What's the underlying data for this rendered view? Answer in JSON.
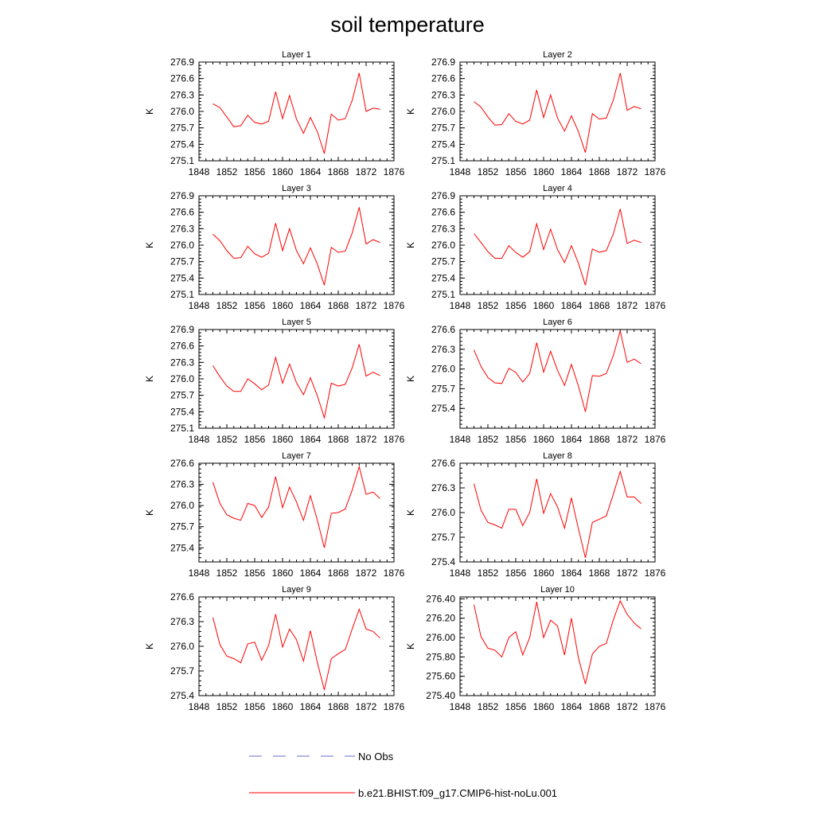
{
  "title": "soil temperature",
  "legend": {
    "entries": [
      {
        "label": "No Obs",
        "color": "#6a6ad0",
        "style": "dashed"
      },
      {
        "label": "b.e21.BHIST.f09_g17.CMIP6-hist-noLu.001",
        "color": "#ff0000",
        "style": "solid"
      }
    ]
  },
  "chart_data": [
    {
      "type": "line",
      "title": "Layer 1",
      "ylabel": "K",
      "xlim": [
        1848,
        1876
      ],
      "ylim": [
        275.1,
        276.9
      ],
      "xticks": [
        "1848",
        "1852",
        "1856",
        "1860",
        "1864",
        "1868",
        "1872",
        "1876"
      ],
      "yticks": [
        "275.1",
        "275.4",
        "275.7",
        "276.0",
        "276.3",
        "276.6",
        "276.9"
      ],
      "x": [
        1850,
        1851,
        1852,
        1853,
        1854,
        1855,
        1856,
        1857,
        1858,
        1859,
        1860,
        1861,
        1862,
        1863,
        1864,
        1865,
        1866,
        1867,
        1868,
        1869,
        1870,
        1871,
        1872,
        1873,
        1874
      ],
      "series": [
        {
          "color": "#ff0000",
          "values": [
            276.14,
            276.07,
            275.9,
            275.72,
            275.74,
            275.93,
            275.8,
            275.77,
            275.82,
            276.36,
            275.87,
            276.29,
            275.86,
            275.6,
            275.89,
            275.63,
            275.23,
            275.95,
            275.84,
            275.87,
            276.2,
            276.7,
            276.0,
            276.06,
            276.04
          ]
        }
      ]
    },
    {
      "type": "line",
      "title": "Layer 2",
      "ylabel": "K",
      "xlim": [
        1848,
        1876
      ],
      "ylim": [
        275.1,
        276.9
      ],
      "xticks": [
        "1848",
        "1852",
        "1856",
        "1860",
        "1864",
        "1868",
        "1872",
        "1876"
      ],
      "yticks": [
        "275.1",
        "275.4",
        "275.7",
        "276.0",
        "276.3",
        "276.6",
        "276.9"
      ],
      "x": [
        1850,
        1851,
        1852,
        1853,
        1854,
        1855,
        1856,
        1857,
        1858,
        1859,
        1860,
        1861,
        1862,
        1863,
        1864,
        1865,
        1866,
        1867,
        1868,
        1869,
        1870,
        1871,
        1872,
        1873,
        1874
      ],
      "series": [
        {
          "color": "#ff0000",
          "values": [
            276.18,
            276.08,
            275.9,
            275.75,
            275.76,
            275.96,
            275.82,
            275.77,
            275.84,
            276.39,
            275.89,
            276.3,
            275.88,
            275.64,
            275.92,
            275.63,
            275.25,
            275.96,
            275.86,
            275.88,
            276.2,
            276.7,
            276.02,
            276.09,
            276.05
          ]
        }
      ]
    },
    {
      "type": "line",
      "title": "Layer 3",
      "ylabel": "K",
      "xlim": [
        1848,
        1876
      ],
      "ylim": [
        275.1,
        276.9
      ],
      "xticks": [
        "1848",
        "1852",
        "1856",
        "1860",
        "1864",
        "1868",
        "1872",
        "1876"
      ],
      "yticks": [
        "275.1",
        "275.4",
        "275.7",
        "276.0",
        "276.3",
        "276.6",
        "276.9"
      ],
      "x": [
        1850,
        1851,
        1852,
        1853,
        1854,
        1855,
        1856,
        1857,
        1858,
        1859,
        1860,
        1861,
        1862,
        1863,
        1864,
        1865,
        1866,
        1867,
        1868,
        1869,
        1870,
        1871,
        1872,
        1873,
        1874
      ],
      "series": [
        {
          "color": "#ff0000",
          "values": [
            276.2,
            276.08,
            275.9,
            275.76,
            275.77,
            275.98,
            275.84,
            275.78,
            275.85,
            276.4,
            275.9,
            276.3,
            275.9,
            275.66,
            275.95,
            275.65,
            275.27,
            275.96,
            275.87,
            275.89,
            276.22,
            276.69,
            276.02,
            276.1,
            276.05
          ]
        }
      ]
    },
    {
      "type": "line",
      "title": "Layer 4",
      "ylabel": "K",
      "xlim": [
        1848,
        1876
      ],
      "ylim": [
        275.1,
        276.9
      ],
      "xticks": [
        "1848",
        "1852",
        "1856",
        "1860",
        "1864",
        "1868",
        "1872",
        "1876"
      ],
      "yticks": [
        "275.1",
        "275.4",
        "275.7",
        "276.0",
        "276.3",
        "276.6",
        "276.9"
      ],
      "x": [
        1850,
        1851,
        1852,
        1853,
        1854,
        1855,
        1856,
        1857,
        1858,
        1859,
        1860,
        1861,
        1862,
        1863,
        1864,
        1865,
        1866,
        1867,
        1868,
        1869,
        1870,
        1871,
        1872,
        1873,
        1874
      ],
      "series": [
        {
          "color": "#ff0000",
          "values": [
            276.21,
            276.05,
            275.88,
            275.76,
            275.76,
            275.99,
            275.87,
            275.78,
            275.88,
            276.39,
            275.92,
            276.29,
            275.92,
            275.68,
            275.99,
            275.67,
            275.27,
            275.93,
            275.87,
            275.9,
            276.2,
            276.66,
            276.03,
            276.09,
            276.05
          ]
        }
      ]
    },
    {
      "type": "line",
      "title": "Layer 5",
      "ylabel": "K",
      "xlim": [
        1848,
        1876
      ],
      "ylim": [
        275.1,
        276.9
      ],
      "xticks": [
        "1848",
        "1852",
        "1856",
        "1860",
        "1864",
        "1868",
        "1872",
        "1876"
      ],
      "yticks": [
        "275.1",
        "275.4",
        "275.7",
        "276.0",
        "276.3",
        "276.6",
        "276.9"
      ],
      "x": [
        1850,
        1851,
        1852,
        1853,
        1854,
        1855,
        1856,
        1857,
        1858,
        1859,
        1860,
        1861,
        1862,
        1863,
        1864,
        1865,
        1866,
        1867,
        1868,
        1869,
        1870,
        1871,
        1872,
        1873,
        1874
      ],
      "series": [
        {
          "color": "#ff0000",
          "values": [
            276.24,
            276.04,
            275.87,
            275.77,
            275.77,
            276.0,
            275.91,
            275.8,
            275.89,
            276.39,
            275.92,
            276.27,
            275.93,
            275.71,
            276.02,
            275.69,
            275.29,
            275.92,
            275.87,
            275.9,
            276.2,
            276.63,
            276.05,
            276.12,
            276.06
          ]
        }
      ]
    },
    {
      "type": "line",
      "title": "Layer 6",
      "ylabel": "K",
      "xlim": [
        1848,
        1876
      ],
      "ylim": [
        275.1,
        276.6
      ],
      "xticks": [
        "1848",
        "1852",
        "1856",
        "1860",
        "1864",
        "1868",
        "1872",
        "1876"
      ],
      "yticks": [
        "275.4",
        "275.7",
        "276.0",
        "276.3",
        "276.6"
      ],
      "x": [
        1850,
        1851,
        1852,
        1853,
        1854,
        1855,
        1856,
        1857,
        1858,
        1859,
        1860,
        1861,
        1862,
        1863,
        1864,
        1865,
        1866,
        1867,
        1868,
        1869,
        1870,
        1871,
        1872,
        1873,
        1874
      ],
      "series": [
        {
          "color": "#ff0000",
          "values": [
            276.29,
            276.04,
            275.87,
            275.79,
            275.78,
            276.01,
            275.95,
            275.8,
            275.93,
            276.4,
            275.95,
            276.27,
            275.98,
            275.75,
            276.07,
            275.74,
            275.35,
            275.9,
            275.89,
            275.93,
            276.2,
            276.58,
            276.1,
            276.15,
            276.08
          ]
        }
      ]
    },
    {
      "type": "line",
      "title": "Layer 7",
      "ylabel": "K",
      "xlim": [
        1848,
        1876
      ],
      "ylim": [
        275.2,
        276.6
      ],
      "xticks": [
        "1848",
        "1852",
        "1856",
        "1860",
        "1864",
        "1868",
        "1872",
        "1876"
      ],
      "yticks": [
        "275.4",
        "275.7",
        "276.0",
        "276.3",
        "276.6"
      ],
      "x": [
        1850,
        1851,
        1852,
        1853,
        1854,
        1855,
        1856,
        1857,
        1858,
        1859,
        1860,
        1861,
        1862,
        1863,
        1864,
        1865,
        1866,
        1867,
        1868,
        1869,
        1870,
        1871,
        1872,
        1873,
        1874
      ],
      "series": [
        {
          "color": "#ff0000",
          "values": [
            276.33,
            276.03,
            275.87,
            275.82,
            275.79,
            276.03,
            276.0,
            275.83,
            275.98,
            276.41,
            275.97,
            276.26,
            276.05,
            275.79,
            276.14,
            275.79,
            275.4,
            275.89,
            275.9,
            275.95,
            276.22,
            276.55,
            276.16,
            276.19,
            276.1
          ]
        }
      ]
    },
    {
      "type": "line",
      "title": "Layer 8",
      "ylabel": "K",
      "xlim": [
        1848,
        1876
      ],
      "ylim": [
        275.4,
        276.6
      ],
      "xticks": [
        "1848",
        "1852",
        "1856",
        "1860",
        "1864",
        "1868",
        "1872",
        "1876"
      ],
      "yticks": [
        "275.4",
        "275.7",
        "276.0",
        "276.3",
        "276.6"
      ],
      "x": [
        1850,
        1851,
        1852,
        1853,
        1854,
        1855,
        1856,
        1857,
        1858,
        1859,
        1860,
        1861,
        1862,
        1863,
        1864,
        1865,
        1866,
        1867,
        1868,
        1869,
        1870,
        1871,
        1872,
        1873,
        1874
      ],
      "series": [
        {
          "color": "#ff0000",
          "values": [
            276.35,
            276.03,
            275.88,
            275.85,
            275.81,
            276.04,
            276.04,
            275.84,
            276.0,
            276.41,
            275.99,
            276.23,
            276.07,
            275.81,
            276.18,
            275.8,
            275.45,
            275.88,
            275.92,
            275.96,
            276.22,
            276.5,
            276.19,
            276.19,
            276.11
          ]
        }
      ]
    },
    {
      "type": "line",
      "title": "Layer 9",
      "ylabel": "K",
      "xlim": [
        1848,
        1876
      ],
      "ylim": [
        275.4,
        276.6
      ],
      "xticks": [
        "1848",
        "1852",
        "1856",
        "1860",
        "1864",
        "1868",
        "1872",
        "1876"
      ],
      "yticks": [
        "275.4",
        "275.7",
        "276.0",
        "276.3",
        "276.6"
      ],
      "x": [
        1850,
        1851,
        1852,
        1853,
        1854,
        1855,
        1856,
        1857,
        1858,
        1859,
        1860,
        1861,
        1862,
        1863,
        1864,
        1865,
        1866,
        1867,
        1868,
        1869,
        1870,
        1871,
        1872,
        1873,
        1874
      ],
      "series": [
        {
          "color": "#ff0000",
          "values": [
            276.35,
            276.02,
            275.88,
            275.85,
            275.8,
            276.03,
            276.05,
            275.83,
            276.01,
            276.39,
            275.99,
            276.21,
            276.08,
            275.82,
            276.19,
            275.8,
            275.47,
            275.85,
            275.91,
            275.96,
            276.21,
            276.45,
            276.21,
            276.18,
            276.1
          ]
        }
      ]
    },
    {
      "type": "line",
      "title": "Layer 10",
      "ylabel": "K",
      "xlim": [
        1848,
        1876
      ],
      "ylim": [
        275.4,
        276.42
      ],
      "xticks": [
        "1848",
        "1852",
        "1856",
        "1860",
        "1864",
        "1868",
        "1872",
        "1876"
      ],
      "yticks": [
        "275.40",
        "275.60",
        "275.80",
        "276.00",
        "276.20",
        "276.40"
      ],
      "x": [
        1850,
        1851,
        1852,
        1853,
        1854,
        1855,
        1856,
        1857,
        1858,
        1859,
        1860,
        1861,
        1862,
        1863,
        1864,
        1865,
        1866,
        1867,
        1868,
        1869,
        1870,
        1871,
        1872,
        1873,
        1874
      ],
      "series": [
        {
          "color": "#ff0000",
          "values": [
            276.34,
            276.01,
            275.89,
            275.87,
            275.8,
            276.0,
            276.06,
            275.82,
            276.0,
            276.37,
            276.0,
            276.18,
            276.12,
            275.82,
            276.2,
            275.79,
            275.52,
            275.83,
            275.91,
            275.94,
            276.18,
            276.38,
            276.24,
            276.15,
            276.09
          ]
        }
      ]
    }
  ]
}
